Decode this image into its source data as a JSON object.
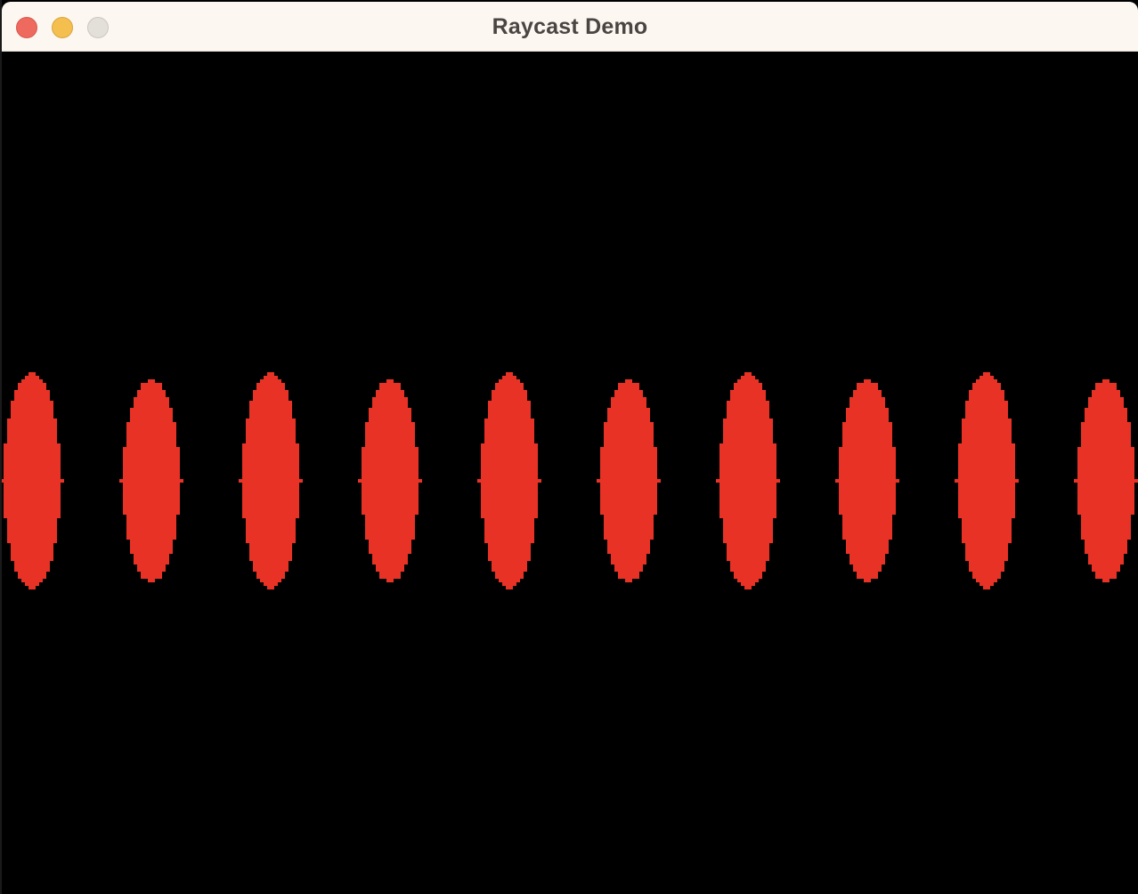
{
  "window": {
    "title": "Raycast Demo",
    "controls": {
      "close_color": "#ee6a5f",
      "minimize_color": "#f5bf4f",
      "zoom_color": "#e3dfd9"
    }
  },
  "scene": {
    "background_color": "#000000",
    "sprite_color": "#e83225",
    "sprite_shape": "pixelated-vertical-ellipse",
    "sprite_count": 10
  }
}
